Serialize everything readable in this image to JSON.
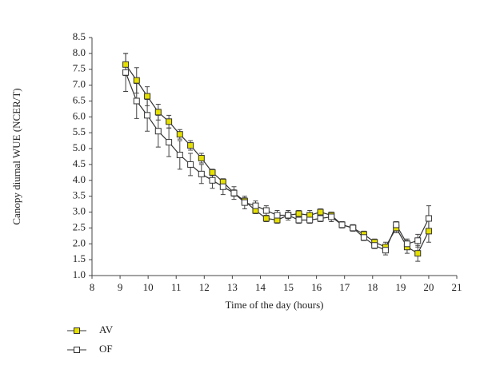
{
  "chart_data": {
    "type": "line",
    "x_label": "Time of the day (hours)",
    "y_label": "Canopy diurnal WUE (NCER/T)",
    "x": [
      9.2,
      9.59,
      9.97,
      10.36,
      10.74,
      11.13,
      11.51,
      11.9,
      12.29,
      12.67,
      13.06,
      13.44,
      13.83,
      14.21,
      14.6,
      14.99,
      15.37,
      15.76,
      16.14,
      16.53,
      16.91,
      17.3,
      17.69,
      18.07,
      18.46,
      18.84,
      19.23,
      19.61,
      20.0
    ],
    "series": [
      {
        "name": "AV",
        "color": "#e6e000",
        "values": [
          7.65,
          7.15,
          6.65,
          6.15,
          5.85,
          5.45,
          5.1,
          4.7,
          4.25,
          3.95,
          3.6,
          3.35,
          3.05,
          2.8,
          2.75,
          2.9,
          2.95,
          2.9,
          3.0,
          2.9,
          2.6,
          2.5,
          2.3,
          2.05,
          1.9,
          2.5,
          1.9,
          1.7,
          2.4
        ],
        "errors": [
          0.35,
          0.4,
          0.3,
          0.25,
          0.2,
          0.15,
          0.15,
          0.15,
          0.1,
          0.1,
          0.1,
          0.1,
          0.1,
          0.1,
          0.1,
          0.1,
          0.1,
          0.15,
          0.1,
          0.1,
          0.1,
          0.1,
          0.1,
          0.1,
          0.15,
          0.15,
          0.2,
          0.25,
          0.35
        ]
      },
      {
        "name": "OF",
        "color": "#ffffff",
        "values": [
          7.4,
          6.5,
          6.05,
          5.55,
          5.2,
          4.8,
          4.5,
          4.2,
          4.0,
          3.8,
          3.6,
          3.3,
          3.2,
          3.05,
          2.9,
          2.9,
          2.75,
          2.75,
          2.8,
          2.85,
          2.6,
          2.5,
          2.2,
          1.95,
          1.8,
          2.6,
          2.0,
          2.1,
          2.8
        ],
        "errors": [
          0.6,
          0.55,
          0.5,
          0.5,
          0.45,
          0.45,
          0.35,
          0.3,
          0.25,
          0.25,
          0.2,
          0.2,
          0.15,
          0.15,
          0.15,
          0.15,
          0.1,
          0.1,
          0.1,
          0.15,
          0.1,
          0.1,
          0.1,
          0.1,
          0.15,
          0.1,
          0.15,
          0.2,
          0.4
        ]
      }
    ],
    "xlim": [
      8,
      21
    ],
    "xticks": [
      8,
      9,
      10,
      11,
      12,
      13,
      14,
      15,
      16,
      17,
      18,
      19,
      20,
      21
    ],
    "ylim": [
      1,
      8.5
    ],
    "yticks": [
      {
        "value": 1,
        "label": "1.0"
      },
      1.5,
      {
        "value": 2,
        "label": "2.0"
      },
      2.5,
      {
        "value": 3,
        "label": "3.0"
      },
      3.5,
      {
        "value": 4,
        "label": "4.0"
      },
      4.5,
      {
        "value": 5,
        "label": "5.0"
      },
      5.5,
      {
        "value": 6,
        "label": "6.0"
      },
      6.5,
      {
        "value": 7,
        "label": "7.0"
      },
      7.5,
      {
        "value": 8,
        "label": "8.0"
      },
      8.5
    ],
    "legend": "bottom-left",
    "grid": false
  }
}
